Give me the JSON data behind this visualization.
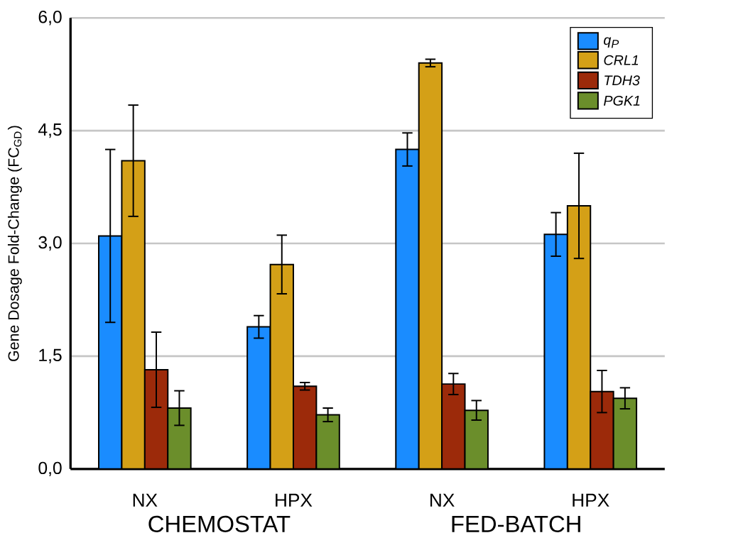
{
  "chart_data": {
    "type": "bar",
    "ylabel": "Gene Dosage Fold-Change (FC$_{GD}$)",
    "categories": [
      "NX",
      "HPX",
      "NX",
      "HPX"
    ],
    "series": [
      {
        "name": "q$_{P}$",
        "color": "#1a8cff",
        "values": [
          3.1,
          1.89,
          4.25,
          3.12
        ],
        "errors": [
          1.15,
          0.15,
          0.22,
          0.29
        ]
      },
      {
        "name": "CRL1",
        "color": "#d4a017",
        "values": [
          4.1,
          2.72,
          5.4,
          3.5
        ],
        "errors": [
          0.74,
          0.39,
          0.05,
          0.7
        ]
      },
      {
        "name": "TDH3",
        "color": "#9c2a0a",
        "values": [
          1.32,
          1.1,
          1.13,
          1.03
        ],
        "errors": [
          0.5,
          0.05,
          0.14,
          0.28
        ]
      },
      {
        "name": "PGK1",
        "color": "#6b8e2b",
        "values": [
          0.81,
          0.72,
          0.78,
          0.94
        ],
        "errors": [
          0.23,
          0.09,
          0.13,
          0.14
        ]
      }
    ],
    "ylim": [
      0,
      6
    ],
    "yticks": [
      {
        "value": 0,
        "label": "0,0"
      },
      {
        "value": 1.5,
        "label": "1,5"
      },
      {
        "value": 3,
        "label": "3,0"
      },
      {
        "value": 4.5,
        "label": "4,5"
      },
      {
        "value": 6,
        "label": "6,0"
      }
    ],
    "grid": "y",
    "legend": "top right",
    "annotations": [
      "CHEMOSTAT",
      "FED-BATCH"
    ]
  }
}
